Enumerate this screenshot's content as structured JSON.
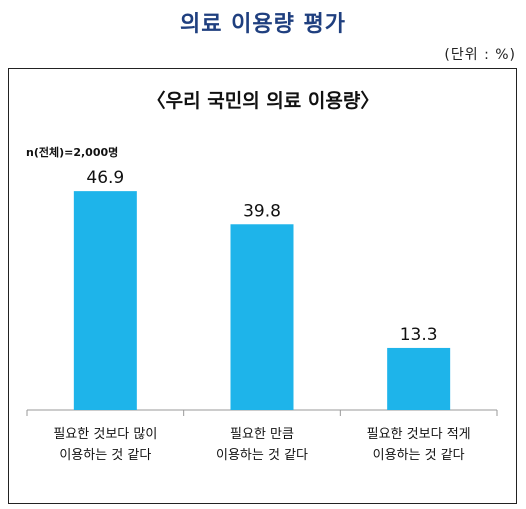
{
  "header": {
    "title": "의료 이용량 평가",
    "unit": "(단위 : %)"
  },
  "chart_data": {
    "type": "bar",
    "title": "〈우리 국민의 의료 이용량〉",
    "annotation": "n(전체)=2,000명",
    "categories": [
      [
        "필요한 것보다 많이",
        "이용하는 것 같다"
      ],
      [
        "필요한 만큼",
        "이용하는 것 같다"
      ],
      [
        "필요한 것보다 적게",
        "이용하는 것 같다"
      ]
    ],
    "values": [
      46.9,
      39.8,
      13.3
    ],
    "value_labels": [
      "46.9",
      "39.8",
      "13.3"
    ],
    "ylim": [
      0,
      60
    ],
    "bar_color": "#1eb4ea",
    "grid": false,
    "legend": "none"
  }
}
